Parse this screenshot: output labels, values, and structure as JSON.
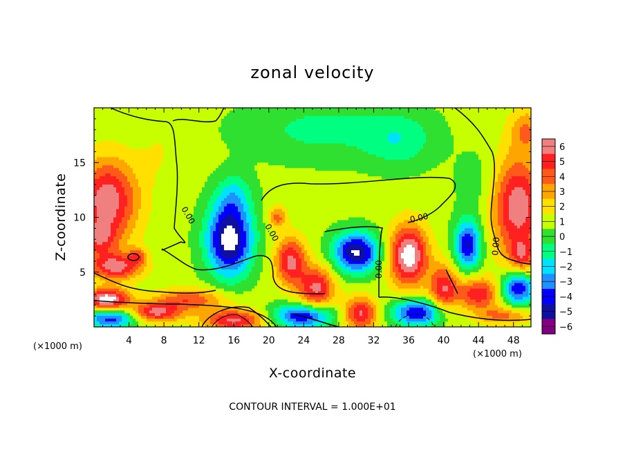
{
  "chart_data": {
    "type": "heatmap",
    "title": "zonal velocity",
    "xlabel": "X-coordinate",
    "ylabel": "Z-coordinate",
    "x_unit_label_left": "(×1000 m)",
    "x_unit_label_right": "(×1000 m)",
    "xlim": [
      0,
      50
    ],
    "ylim": [
      0,
      20
    ],
    "x_ticks": [
      4,
      8,
      12,
      16,
      20,
      24,
      28,
      32,
      36,
      40,
      44,
      48
    ],
    "y_ticks": [
      5,
      10,
      15
    ],
    "colorbar": {
      "levels": [
        6,
        5,
        4,
        3,
        2,
        1,
        0,
        -1,
        -2,
        -3,
        -4,
        -5,
        -6
      ],
      "colors": [
        "#f08080",
        "#ff2020",
        "#ff5a1a",
        "#ffa500",
        "#ffe000",
        "#c8ff00",
        "#30e030",
        "#00ff80",
        "#00e0ff",
        "#2090ff",
        "#0000ff",
        "#1010a0",
        "#800080"
      ]
    },
    "contour_label": "0.00",
    "footer": "CONTOUR INTERVAL = 1.000E+01",
    "field": {
      "background": 0.3,
      "blobs": [
        {
          "x": 26,
          "z": 18,
          "sx": 9,
          "sz": 2.8,
          "v": -1.6
        },
        {
          "x": 35,
          "z": 17,
          "sx": 4,
          "sz": 2.5,
          "v": -1.8
        },
        {
          "x": 1.5,
          "z": 11.5,
          "sx": 3.5,
          "sz": 3.8,
          "v": 5.5
        },
        {
          "x": 0.5,
          "z": 8,
          "sx": 2,
          "sz": 1.5,
          "v": 3
        },
        {
          "x": 48.5,
          "z": 11,
          "sx": 3,
          "sz": 4.5,
          "v": 5.5
        },
        {
          "x": 15.5,
          "z": 8,
          "sx": 2.6,
          "sz": 3.3,
          "v": -7
        },
        {
          "x": 16,
          "z": 12,
          "sx": 2,
          "sz": 2,
          "v": -2
        },
        {
          "x": 30,
          "z": 6.8,
          "sx": 2.6,
          "sz": 1.8,
          "v": -6.5
        },
        {
          "x": 42.8,
          "z": 7.5,
          "sx": 1.5,
          "sz": 2.2,
          "v": -5.5
        },
        {
          "x": 21,
          "z": 10,
          "sx": 1,
          "sz": 1,
          "v": 3
        },
        {
          "x": 22.5,
          "z": 6,
          "sx": 1.8,
          "sz": 2.2,
          "v": 5
        },
        {
          "x": 25.5,
          "z": 3.5,
          "sx": 2,
          "sz": 2,
          "v": 5
        },
        {
          "x": 36,
          "z": 6.5,
          "sx": 2.2,
          "sz": 2.8,
          "v": 6.5
        },
        {
          "x": 40,
          "z": 3.5,
          "sx": 1.6,
          "sz": 2.2,
          "v": 4.5
        },
        {
          "x": 2.5,
          "z": 5.5,
          "sx": 3,
          "sz": 1.2,
          "v": 5
        },
        {
          "x": 1.5,
          "z": 2.5,
          "sx": 2.5,
          "sz": 1,
          "v": 6.5
        },
        {
          "x": 2,
          "z": 0.8,
          "sx": 3,
          "sz": 0.9,
          "v": -5
        },
        {
          "x": 7,
          "z": 1.3,
          "sx": 3,
          "sz": 0.9,
          "v": 5
        },
        {
          "x": 11,
          "z": 2.5,
          "sx": 4,
          "sz": 1,
          "v": 3.5
        },
        {
          "x": 16,
          "z": 0.6,
          "sx": 3.5,
          "sz": 1,
          "v": 5
        },
        {
          "x": 24,
          "z": 1,
          "sx": 3.5,
          "sz": 1.1,
          "v": -5.5
        },
        {
          "x": 30.5,
          "z": 1.2,
          "sx": 2,
          "sz": 1.5,
          "v": 5
        },
        {
          "x": 37,
          "z": 1.3,
          "sx": 3,
          "sz": 1.2,
          "v": -5.5
        },
        {
          "x": 44,
          "z": 3,
          "sx": 2.5,
          "sz": 1.5,
          "v": 4.5
        },
        {
          "x": 48.5,
          "z": 3.5,
          "sx": 2,
          "sz": 1.5,
          "v": -5.5
        },
        {
          "x": 47,
          "z": 1,
          "sx": 3,
          "sz": 0.8,
          "v": 3
        },
        {
          "x": 7.5,
          "z": 16,
          "sx": 2.5,
          "sz": 3,
          "v": 0.7
        },
        {
          "x": 44,
          "z": 13,
          "sx": 2.5,
          "sz": 3,
          "v": -1
        },
        {
          "x": 5,
          "z": 6.5,
          "sx": 1,
          "sz": 0.8,
          "v": 2.5
        },
        {
          "x": 49,
          "z": 6.5,
          "sx": 1.5,
          "sz": 1.5,
          "v": 3
        },
        {
          "x": 49.5,
          "z": 18,
          "sx": 2,
          "sz": 2,
          "v": 2.5
        }
      ]
    }
  }
}
